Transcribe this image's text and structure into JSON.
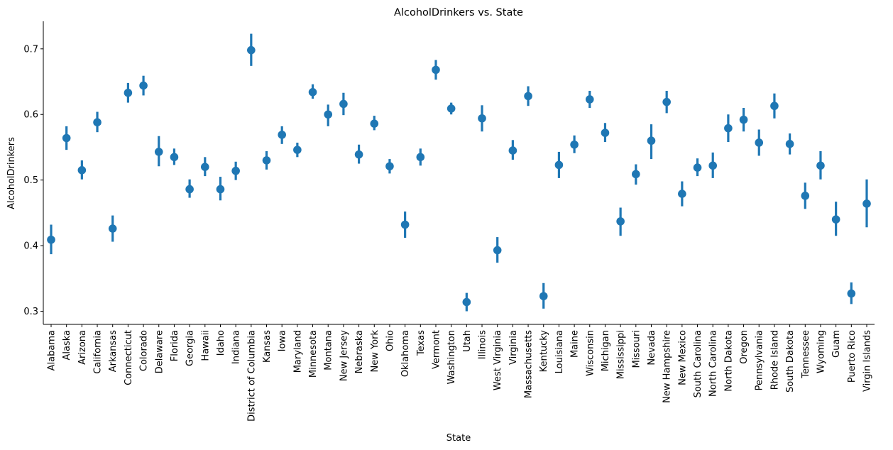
{
  "chart_data": {
    "type": "pointplot",
    "title": "AlcoholDrinkers vs. State",
    "xlabel": "State",
    "ylabel": "AlcoholDrinkers",
    "ylim": [
      0.28,
      0.742
    ],
    "yticks": [
      0.3,
      0.4,
      0.5,
      0.6,
      0.7
    ],
    "ytick_labels": [
      "0.3",
      "0.4",
      "0.5",
      "0.6",
      "0.7"
    ],
    "grid": false,
    "color": "#1f77b4",
    "categories": [
      "Alabama",
      "Alaska",
      "Arizona",
      "California",
      "Arkansas",
      "Connecticut",
      "Colorado",
      "Delaware",
      "Florida",
      "Georgia",
      "Hawaii",
      "Idaho",
      "Indiana",
      "District of Columbia",
      "Kansas",
      "Iowa",
      "Maryland",
      "Minnesota",
      "Montana",
      "New Jersey",
      "Nebraska",
      "New York",
      "Ohio",
      "Oklahoma",
      "Texas",
      "Vermont",
      "Washington",
      "Utah",
      "Illinois",
      "West Virginia",
      "Virginia",
      "Massachusetts",
      "Kentucky",
      "Louisiana",
      "Maine",
      "Wisconsin",
      "Michigan",
      "Mississippi",
      "Missouri",
      "Nevada",
      "New Hampshire",
      "New Mexico",
      "South Carolina",
      "North Carolina",
      "North Dakota",
      "Oregon",
      "Pennsylvania",
      "Rhode Island",
      "South Dakota",
      "Tennessee",
      "Wyoming",
      "Guam",
      "Puerto Rico",
      "Virgin Islands"
    ],
    "values": [
      0.409,
      0.564,
      0.515,
      0.588,
      0.426,
      0.633,
      0.644,
      0.543,
      0.535,
      0.486,
      0.52,
      0.486,
      0.514,
      0.698,
      0.53,
      0.569,
      0.546,
      0.634,
      0.6,
      0.616,
      0.539,
      0.586,
      0.521,
      0.432,
      0.535,
      0.668,
      0.609,
      0.314,
      0.594,
      0.393,
      0.545,
      0.628,
      0.323,
      0.523,
      0.554,
      0.623,
      0.572,
      0.437,
      0.509,
      0.56,
      0.619,
      0.479,
      0.519,
      0.522,
      0.579,
      0.592,
      0.557,
      0.613,
      0.555,
      0.476,
      0.522,
      0.44,
      0.327,
      0.464
    ],
    "ci_low": [
      0.387,
      0.546,
      0.501,
      0.573,
      0.406,
      0.618,
      0.629,
      0.521,
      0.523,
      0.473,
      0.506,
      0.469,
      0.5,
      0.674,
      0.516,
      0.555,
      0.535,
      0.624,
      0.582,
      0.599,
      0.525,
      0.576,
      0.51,
      0.412,
      0.522,
      0.653,
      0.6,
      0.3,
      0.574,
      0.374,
      0.531,
      0.613,
      0.304,
      0.503,
      0.541,
      0.61,
      0.558,
      0.415,
      0.493,
      0.532,
      0.602,
      0.46,
      0.506,
      0.503,
      0.558,
      0.574,
      0.537,
      0.594,
      0.539,
      0.456,
      0.501,
      0.415,
      0.311,
      0.428
    ],
    "ci_high": [
      0.432,
      0.582,
      0.53,
      0.604,
      0.446,
      0.648,
      0.659,
      0.567,
      0.548,
      0.501,
      0.535,
      0.505,
      0.528,
      0.723,
      0.544,
      0.582,
      0.557,
      0.646,
      0.615,
      0.633,
      0.554,
      0.598,
      0.532,
      0.452,
      0.548,
      0.683,
      0.618,
      0.328,
      0.614,
      0.413,
      0.561,
      0.643,
      0.343,
      0.543,
      0.568,
      0.636,
      0.587,
      0.458,
      0.524,
      0.585,
      0.636,
      0.498,
      0.533,
      0.542,
      0.6,
      0.61,
      0.577,
      0.632,
      0.571,
      0.496,
      0.544,
      0.467,
      0.344,
      0.501
    ]
  }
}
